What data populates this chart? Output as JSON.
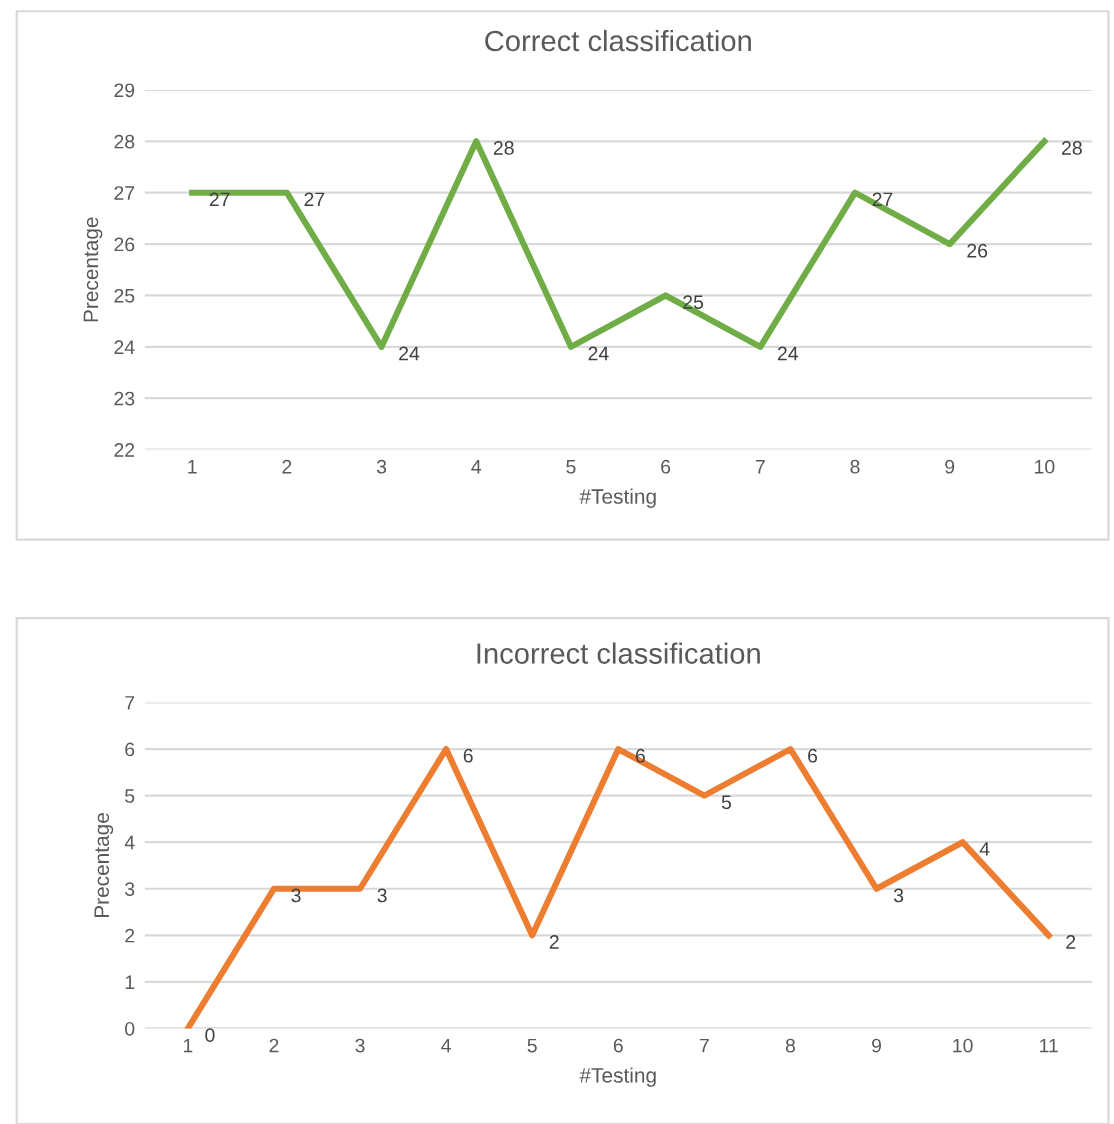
{
  "chart_data": [
    {
      "type": "line",
      "title": "Correct classification",
      "xlabel": "#Testing",
      "ylabel": "Precentage",
      "categories": [
        "1",
        "2",
        "3",
        "4",
        "5",
        "6",
        "7",
        "8",
        "9",
        "10"
      ],
      "series": [
        {
          "color": "#70ad47",
          "values": [
            27,
            27,
            24,
            28,
            24,
            25,
            24,
            27,
            26,
            28
          ]
        }
      ],
      "ylim": [
        22,
        29
      ],
      "yticks": [
        22,
        23,
        24,
        25,
        26,
        27,
        28,
        29
      ],
      "grid": "y",
      "data_labels": true,
      "legend": false
    },
    {
      "type": "line",
      "title": "Incorrect classification",
      "xlabel": "#Testing",
      "ylabel": "Precentage",
      "categories": [
        "1",
        "2",
        "3",
        "4",
        "5",
        "6",
        "7",
        "8",
        "9",
        "10",
        "11"
      ],
      "series": [
        {
          "color": "#ed7d31",
          "values": [
            0,
            3,
            3,
            6,
            2,
            6,
            5,
            6,
            3,
            4,
            2
          ]
        }
      ],
      "ylim": [
        0,
        7
      ],
      "yticks": [
        0,
        1,
        2,
        3,
        4,
        5,
        6,
        7
      ],
      "grid": "y",
      "data_labels": true,
      "legend": false
    }
  ]
}
